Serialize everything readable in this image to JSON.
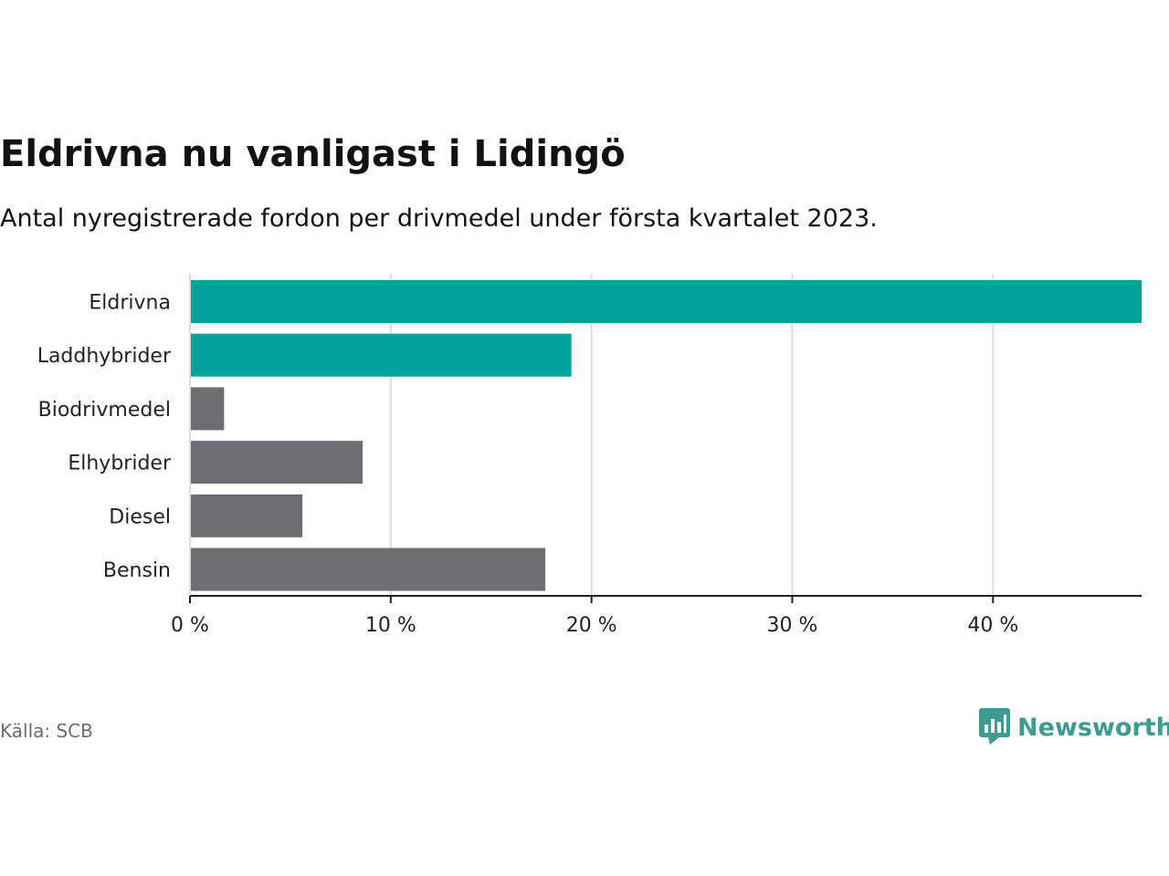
{
  "title": "Eldrivna nu vanligast i Lidingö",
  "subtitle": "Antal nyregistrerade fordon per drivmedel under första kvartalet 2023.",
  "source": "Källa: SCB",
  "brand": {
    "name": "Newsworthy",
    "icon": "newsworthy-logo-icon"
  },
  "colors": {
    "highlight": "#00a29a",
    "default": "#6e6d73",
    "grid": "#dddddd",
    "axis": "#222222",
    "brand": "#3d9b8f"
  },
  "chart_data": {
    "type": "bar",
    "orientation": "horizontal",
    "title": "Eldrivna nu vanligast i Lidingö",
    "xlabel": "",
    "ylabel": "",
    "unit": "%",
    "xlim": [
      0,
      47.4
    ],
    "ticks": [
      0,
      10,
      20,
      30,
      40
    ],
    "tick_labels": [
      "0 %",
      "10 %",
      "20 %",
      "30 %",
      "40 %"
    ],
    "categories": [
      "Eldrivna",
      "Laddhybrider",
      "Biodrivmedel",
      "Elhybrider",
      "Diesel",
      "Bensin"
    ],
    "values": [
      47.4,
      19.0,
      1.7,
      8.6,
      5.6,
      17.7
    ],
    "highlighted": [
      true,
      true,
      false,
      false,
      false,
      false
    ],
    "grid": true
  }
}
